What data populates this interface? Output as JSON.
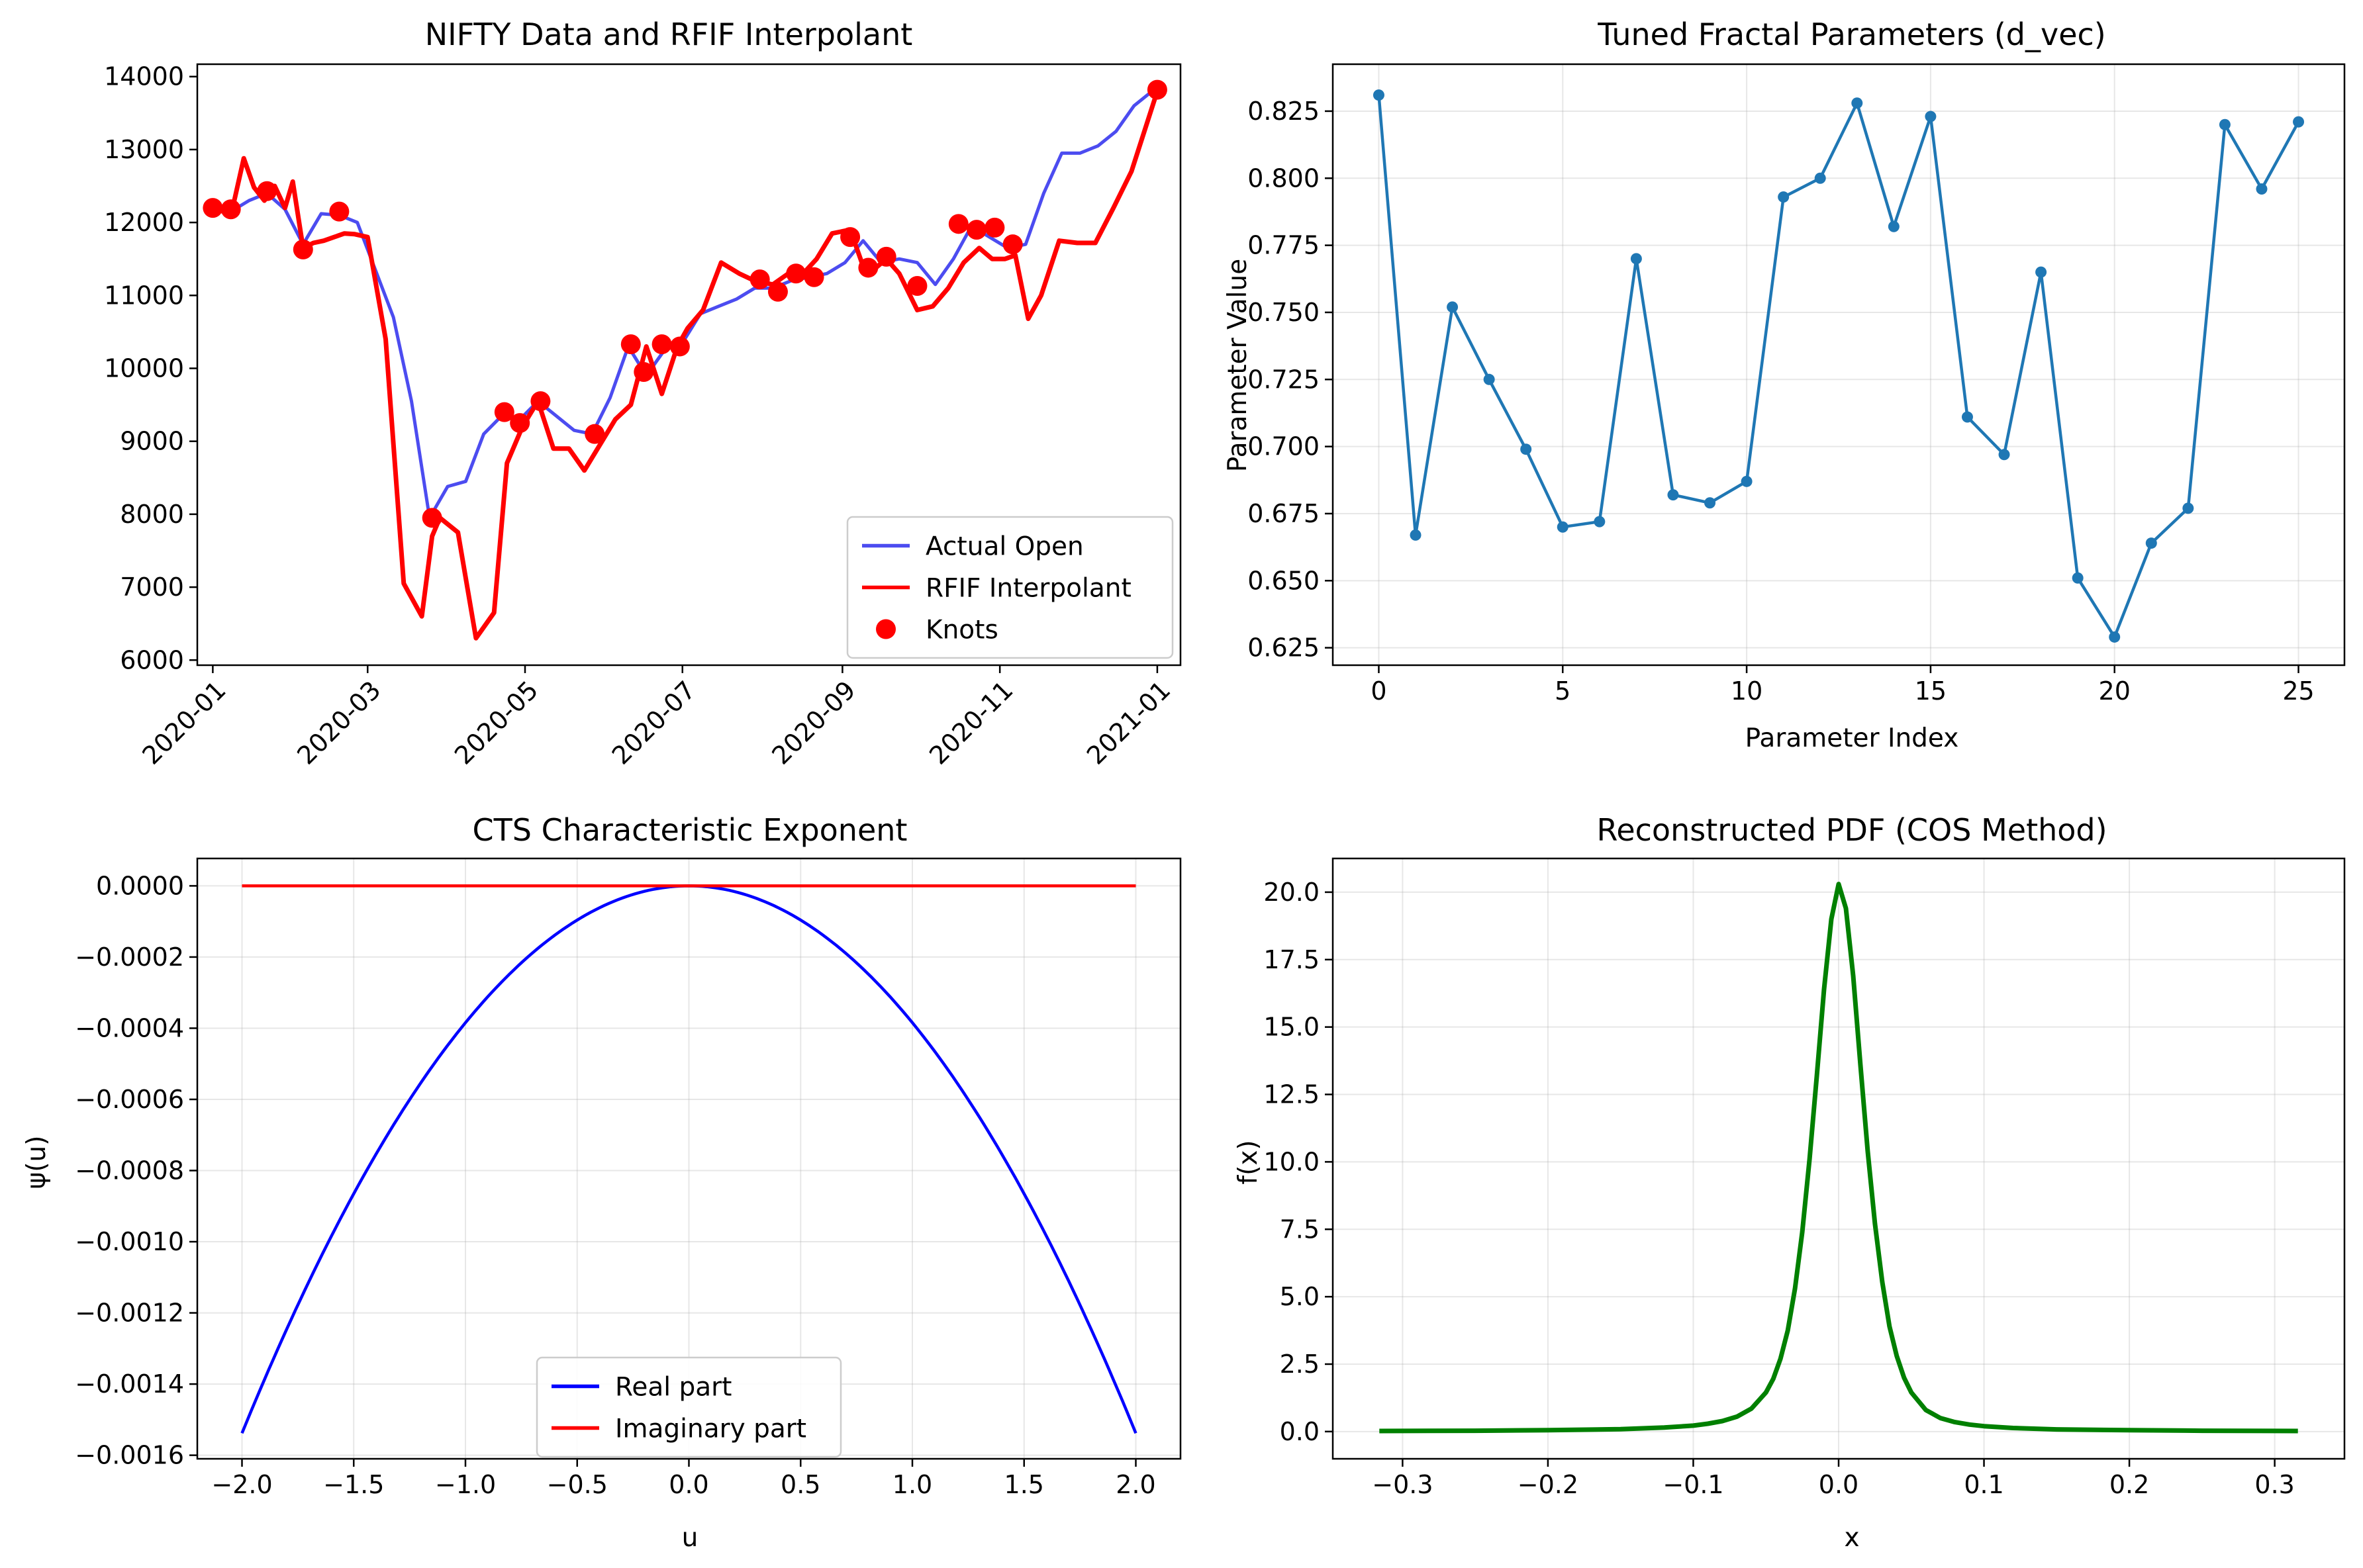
{
  "figure": {
    "background": "#ffffff"
  },
  "chart_data": [
    {
      "type": "line",
      "title": "NIFTY Data and RFIF Interpolant",
      "xlabel": "",
      "ylabel": "",
      "x_axis_type": "date",
      "xlim": [
        "2019-12-26",
        "2021-01-10"
      ],
      "ylim": [
        5930,
        14170
      ],
      "x_ticks": [
        "2020-01",
        "2020-03",
        "2020-05",
        "2020-07",
        "2020-09",
        "2020-11",
        "2021-01"
      ],
      "y_ticks": [
        "6000",
        "7000",
        "8000",
        "9000",
        "10000",
        "11000",
        "12000",
        "13000",
        "14000"
      ],
      "legend_position": "lower-right",
      "grid": false,
      "series": [
        {
          "name": "Actual Open",
          "color": "#4c4cf0",
          "style": "line",
          "points": [
            [
              "2020-01-01",
              12200
            ],
            [
              "2020-01-08",
              12150
            ],
            [
              "2020-01-15",
              12300
            ],
            [
              "2020-01-22",
              12400
            ],
            [
              "2020-01-29",
              12180
            ],
            [
              "2020-02-05",
              11700
            ],
            [
              "2020-02-12",
              12120
            ],
            [
              "2020-02-19",
              12100
            ],
            [
              "2020-02-26",
              12000
            ],
            [
              "2020-03-04",
              11350
            ],
            [
              "2020-03-11",
              10700
            ],
            [
              "2020-03-18",
              9550
            ],
            [
              "2020-03-25",
              7950
            ],
            [
              "2020-04-01",
              8380
            ],
            [
              "2020-04-08",
              8450
            ],
            [
              "2020-04-15",
              9100
            ],
            [
              "2020-04-22",
              9350
            ],
            [
              "2020-04-29",
              9300
            ],
            [
              "2020-05-06",
              9550
            ],
            [
              "2020-05-13",
              9350
            ],
            [
              "2020-05-20",
              9150
            ],
            [
              "2020-05-27",
              9100
            ],
            [
              "2020-06-03",
              9600
            ],
            [
              "2020-06-10",
              10300
            ],
            [
              "2020-06-17",
              9900
            ],
            [
              "2020-06-24",
              10250
            ],
            [
              "2020-07-01",
              10350
            ],
            [
              "2020-07-08",
              10750
            ],
            [
              "2020-07-15",
              10850
            ],
            [
              "2020-07-22",
              10950
            ],
            [
              "2020-07-29",
              11100
            ],
            [
              "2020-08-05",
              11100
            ],
            [
              "2020-08-12",
              11200
            ],
            [
              "2020-08-19",
              11250
            ],
            [
              "2020-08-26",
              11300
            ],
            [
              "2020-09-02",
              11450
            ],
            [
              "2020-09-09",
              11750
            ],
            [
              "2020-09-16",
              11450
            ],
            [
              "2020-09-23",
              11500
            ],
            [
              "2020-09-30",
              11450
            ],
            [
              "2020-10-07",
              11150
            ],
            [
              "2020-10-14",
              11500
            ],
            [
              "2020-10-21",
              11950
            ],
            [
              "2020-10-28",
              11800
            ],
            [
              "2020-11-04",
              11650
            ],
            [
              "2020-11-11",
              11700
            ],
            [
              "2020-11-18",
              12400
            ],
            [
              "2020-11-25",
              12950
            ],
            [
              "2020-12-02",
              12950
            ],
            [
              "2020-12-09",
              13050
            ],
            [
              "2020-12-16",
              13250
            ],
            [
              "2020-12-23",
              13600
            ],
            [
              "2020-12-30",
              13800
            ],
            [
              "2021-01-01",
              13850
            ]
          ]
        },
        {
          "name": "RFIF Interpolant",
          "color": "#ff0000",
          "style": "line",
          "points": [
            [
              "2020-01-01",
              12200
            ],
            [
              "2020-01-05",
              12150
            ],
            [
              "2020-01-09",
              12250
            ],
            [
              "2020-01-13",
              12880
            ],
            [
              "2020-01-17",
              12480
            ],
            [
              "2020-01-21",
              12300
            ],
            [
              "2020-01-25",
              12500
            ],
            [
              "2020-01-29",
              12200
            ],
            [
              "2020-02-01",
              12560
            ],
            [
              "2020-02-05",
              11650
            ],
            [
              "2020-02-09",
              11720
            ],
            [
              "2020-02-13",
              11750
            ],
            [
              "2020-02-17",
              11800
            ],
            [
              "2020-02-21",
              11850
            ],
            [
              "2020-02-25",
              11840
            ],
            [
              "2020-03-01",
              11800
            ],
            [
              "2020-03-08",
              10400
            ],
            [
              "2020-03-15",
              7050
            ],
            [
              "2020-03-22",
              6600
            ],
            [
              "2020-03-26",
              7700
            ],
            [
              "2020-03-29",
              7950
            ],
            [
              "2020-04-05",
              7750
            ],
            [
              "2020-04-12",
              6300
            ],
            [
              "2020-04-19",
              6650
            ],
            [
              "2020-04-24",
              8700
            ],
            [
              "2020-04-30",
              9200
            ],
            [
              "2020-05-06",
              9550
            ],
            [
              "2020-05-12",
              8900
            ],
            [
              "2020-05-18",
              8900
            ],
            [
              "2020-05-24",
              8600
            ],
            [
              "2020-05-30",
              8950
            ],
            [
              "2020-06-05",
              9300
            ],
            [
              "2020-06-11",
              9500
            ],
            [
              "2020-06-17",
              10300
            ],
            [
              "2020-06-23",
              9650
            ],
            [
              "2020-06-29",
              10300
            ],
            [
              "2020-07-03",
              10550
            ],
            [
              "2020-07-09",
              10800
            ],
            [
              "2020-07-16",
              11450
            ],
            [
              "2020-07-23",
              11300
            ],
            [
              "2020-07-29",
              11200
            ],
            [
              "2020-08-05",
              11150
            ],
            [
              "2020-08-11",
              11300
            ],
            [
              "2020-08-16",
              11270
            ],
            [
              "2020-08-22",
              11500
            ],
            [
              "2020-08-28",
              11850
            ],
            [
              "2020-09-04",
              11900
            ],
            [
              "2020-09-09",
              11400
            ],
            [
              "2020-09-13",
              11350
            ],
            [
              "2020-09-18",
              11500
            ],
            [
              "2020-09-23",
              11300
            ],
            [
              "2020-09-30",
              10800
            ],
            [
              "2020-10-06",
              10850
            ],
            [
              "2020-10-12",
              11100
            ],
            [
              "2020-10-18",
              11450
            ],
            [
              "2020-10-24",
              11650
            ],
            [
              "2020-10-29",
              11500
            ],
            [
              "2020-11-03",
              11500
            ],
            [
              "2020-11-07",
              11550
            ],
            [
              "2020-11-12",
              10680
            ],
            [
              "2020-11-17",
              11000
            ],
            [
              "2020-11-24",
              11750
            ],
            [
              "2020-12-01",
              11720
            ],
            [
              "2020-12-08",
              11720
            ],
            [
              "2020-12-15",
              12200
            ],
            [
              "2020-12-22",
              12700
            ],
            [
              "2021-01-01",
              13800
            ]
          ]
        },
        {
          "name": "Knots",
          "color": "#ff0000",
          "style": "scatter",
          "points": [
            [
              "2020-01-01",
              12200
            ],
            [
              "2020-01-08",
              12180
            ],
            [
              "2020-01-22",
              12430
            ],
            [
              "2020-02-05",
              11630
            ],
            [
              "2020-02-19",
              12150
            ],
            [
              "2020-03-26",
              7950
            ],
            [
              "2020-04-23",
              9400
            ],
            [
              "2020-04-29",
              9250
            ],
            [
              "2020-05-07",
              9550
            ],
            [
              "2020-05-28",
              9100
            ],
            [
              "2020-06-11",
              10330
            ],
            [
              "2020-06-16",
              9950
            ],
            [
              "2020-06-23",
              10330
            ],
            [
              "2020-06-30",
              10300
            ],
            [
              "2020-07-31",
              11220
            ],
            [
              "2020-08-07",
              11050
            ],
            [
              "2020-08-14",
              11300
            ],
            [
              "2020-08-21",
              11250
            ],
            [
              "2020-09-04",
              11800
            ],
            [
              "2020-09-11",
              11380
            ],
            [
              "2020-09-18",
              11530
            ],
            [
              "2020-09-30",
              11130
            ],
            [
              "2020-10-16",
              11980
            ],
            [
              "2020-10-23",
              11900
            ],
            [
              "2020-10-30",
              11930
            ],
            [
              "2020-11-06",
              11700
            ],
            [
              "2021-01-01",
              13820
            ]
          ]
        }
      ]
    },
    {
      "type": "line",
      "title": "Tuned Fractal Parameters (d_vec)",
      "xlabel": "Parameter Index",
      "ylabel": "Parameter Value",
      "xlim": [
        -1.25,
        26.25
      ],
      "ylim": [
        0.6185,
        0.8425
      ],
      "x_ticks": [
        "0",
        "5",
        "10",
        "15",
        "20",
        "25"
      ],
      "y_ticks": [
        "0.625",
        "0.650",
        "0.675",
        "0.700",
        "0.725",
        "0.750",
        "0.775",
        "0.800",
        "0.825"
      ],
      "grid": true,
      "series": [
        {
          "name": "",
          "color": "#1f77b4",
          "style": "line-marker",
          "x": [
            0,
            1,
            2,
            3,
            4,
            5,
            6,
            7,
            8,
            9,
            10,
            11,
            12,
            13,
            14,
            15,
            16,
            17,
            18,
            19,
            20,
            21,
            22,
            23,
            24,
            25
          ],
          "values": [
            0.831,
            0.667,
            0.752,
            0.725,
            0.699,
            0.67,
            0.672,
            0.77,
            0.682,
            0.679,
            0.687,
            0.793,
            0.8,
            0.828,
            0.782,
            0.823,
            0.711,
            0.697,
            0.765,
            0.651,
            0.629,
            0.664,
            0.677,
            0.82,
            0.796,
            0.821
          ]
        }
      ]
    },
    {
      "type": "line",
      "title": "CTS Characteristic Exponent",
      "xlabel": "u",
      "ylabel": "ψ(u)",
      "xlim": [
        -2.2,
        2.2
      ],
      "ylim": [
        -0.00161,
        7.7e-05
      ],
      "x_ticks": [
        "−2.0",
        "−1.5",
        "−1.0",
        "−0.5",
        "0.0",
        "0.5",
        "1.0",
        "1.5",
        "2.0"
      ],
      "y_ticks": [
        "−0.0016",
        "−0.0014",
        "−0.0012",
        "−0.0010",
        "−0.0008",
        "−0.0006",
        "−0.0004",
        "−0.0002",
        "0.0000"
      ],
      "legend_position": "lower-center",
      "grid": true,
      "series": [
        {
          "name": "Real part",
          "color": "#0000ff",
          "x": [
            -2.0,
            -1.5,
            -1.0,
            -0.5,
            0.0,
            0.5,
            1.0,
            1.5,
            2.0
          ],
          "values": [
            -0.001538,
            -0.000865,
            -0.000385,
            -9.61e-05,
            0.0,
            -9.61e-05,
            -0.000385,
            -0.000865,
            -0.001538
          ]
        },
        {
          "name": "Imaginary part",
          "color": "#ff0000",
          "x": [
            -2.0,
            2.0
          ],
          "values": [
            0.0,
            0.0
          ]
        }
      ]
    },
    {
      "type": "line",
      "title": "Reconstructed PDF (COS Method)",
      "xlabel": "x",
      "ylabel": "f(x)",
      "xlim": [
        -0.348,
        0.348
      ],
      "ylim": [
        -1.01,
        21.25
      ],
      "x_ticks": [
        "−0.3",
        "−0.2",
        "−0.1",
        "0.0",
        "0.1",
        "0.2",
        "0.3"
      ],
      "y_ticks": [
        "0.0",
        "2.5",
        "5.0",
        "7.5",
        "10.0",
        "12.5",
        "15.0",
        "17.5",
        "20.0"
      ],
      "grid": true,
      "series": [
        {
          "name": "",
          "color": "#008000",
          "x": [
            -0.316,
            -0.25,
            -0.2,
            -0.15,
            -0.12,
            -0.1,
            -0.09,
            -0.08,
            -0.07,
            -0.06,
            -0.05,
            -0.045,
            -0.04,
            -0.035,
            -0.03,
            -0.025,
            -0.02,
            -0.015,
            -0.01,
            -0.005,
            0.0,
            0.005,
            0.01,
            0.015,
            0.02,
            0.025,
            0.03,
            0.035,
            0.04,
            0.045,
            0.05,
            0.06,
            0.07,
            0.08,
            0.09,
            0.1,
            0.12,
            0.15,
            0.2,
            0.25,
            0.316
          ],
          "values": [
            0.02,
            0.03,
            0.05,
            0.09,
            0.15,
            0.22,
            0.29,
            0.39,
            0.55,
            0.85,
            1.45,
            1.95,
            2.7,
            3.75,
            5.3,
            7.4,
            10.1,
            13.2,
            16.4,
            19.0,
            20.3,
            19.4,
            16.9,
            13.6,
            10.4,
            7.7,
            5.55,
            3.9,
            2.8,
            2.0,
            1.45,
            0.8,
            0.5,
            0.35,
            0.26,
            0.2,
            0.13,
            0.08,
            0.05,
            0.03,
            0.02
          ]
        }
      ]
    }
  ]
}
